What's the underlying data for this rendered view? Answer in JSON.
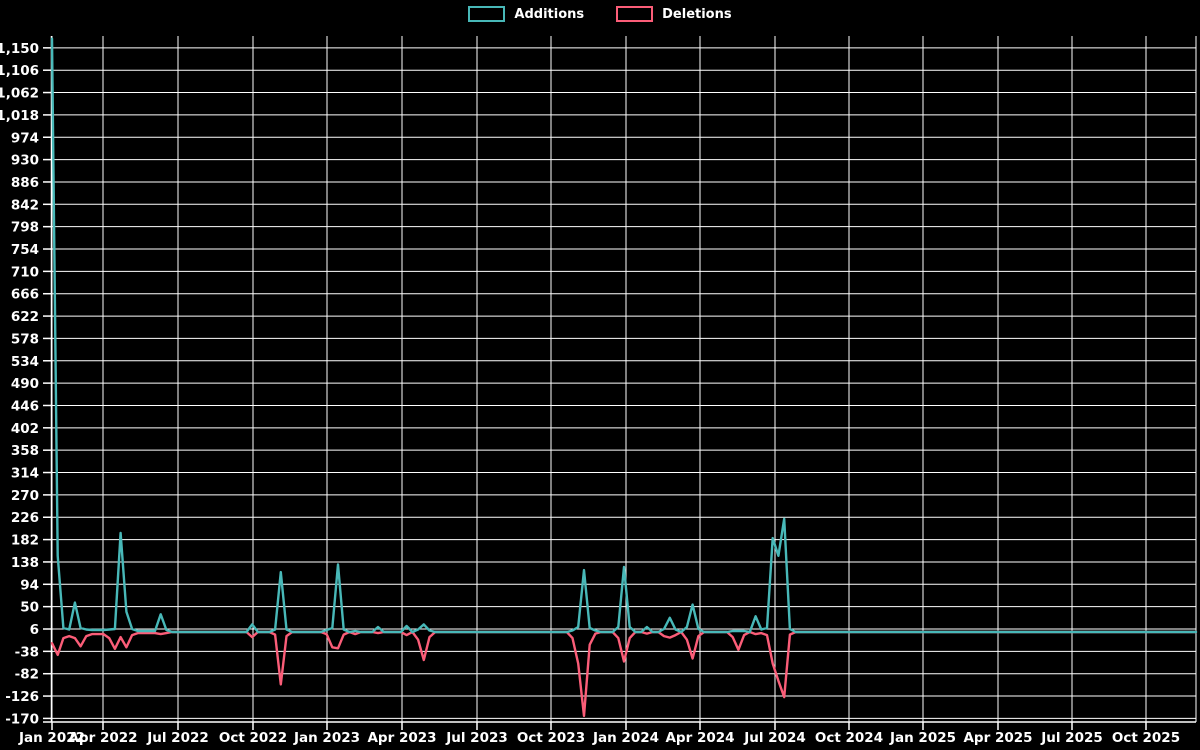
{
  "page": {
    "background": "#000000",
    "grid_color": "#ffffff",
    "text_color": "#ffffff"
  },
  "legend": {
    "items": [
      {
        "label": "Additions",
        "color": "#48b8b8"
      },
      {
        "label": "Deletions",
        "color": "#fb5d78"
      }
    ]
  },
  "chart_data": {
    "type": "line",
    "title": "",
    "xlabel": "",
    "ylabel": "",
    "legend_position": "top-center",
    "grid": true,
    "x_axis": {
      "unit": "week",
      "tick_labels": [
        "Jan 2022",
        "Apr 2022",
        "Jul 2022",
        "Oct 2022",
        "Jan 2023",
        "Apr 2023",
        "Jul 2023",
        "Oct 2023",
        "Jan 2024",
        "Apr 2024",
        "Jul 2024",
        "Oct 2024",
        "Jan 2025",
        "Apr 2025",
        "Jul 2025",
        "Oct 2025"
      ]
    },
    "y_axis": {
      "tick_values": [
        -170,
        -126,
        -82,
        -38,
        6,
        50,
        94,
        138,
        182,
        226,
        270,
        314,
        358,
        402,
        446,
        490,
        534,
        578,
        622,
        666,
        710,
        754,
        798,
        842,
        886,
        930,
        974,
        1018,
        1062,
        1106,
        1150
      ],
      "tick_labels": [
        "-170",
        "-126",
        "-82",
        "-38",
        "6",
        "50",
        "94",
        "138",
        "182",
        "226",
        "270",
        "314",
        "358",
        "402",
        "446",
        "490",
        "534",
        "578",
        "622",
        "666",
        "710",
        "754",
        "798",
        "842",
        "886",
        "930",
        "974",
        "1,018",
        "1,062",
        "1,106",
        "1,150"
      ],
      "drawn_range": [
        -170,
        1173
      ]
    },
    "weeks_total": 201,
    "series": [
      {
        "name": "Additions",
        "color": "#48b8b8",
        "default_value": 0,
        "points_sparse": {
          "0": 1168,
          "1": 150,
          "2": 8,
          "3": 5,
          "4": 58,
          "5": 8,
          "6": 5,
          "7": 4,
          "8": 4,
          "9": 4,
          "10": 5,
          "11": 6,
          "12": 195,
          "13": 40,
          "14": 6,
          "15": 2,
          "16": 2,
          "17": 2,
          "18": 2,
          "19": 35,
          "20": 4,
          "35": 15,
          "39": 5,
          "40": 118,
          "41": 5,
          "48": 4,
          "49": 8,
          "50": 133,
          "51": 5,
          "53": 2,
          "57": 10,
          "62": 12,
          "64": 5,
          "65": 15,
          "66": 3,
          "91": 3,
          "92": 10,
          "93": 122,
          "94": 8,
          "95": 3,
          "99": 10,
          "100": 128,
          "101": 10,
          "104": 10,
          "107": 6,
          "108": 28,
          "109": 5,
          "111": 10,
          "112": 54,
          "113": 6,
          "119": 2,
          "120": 2,
          "121": 2,
          "123": 31,
          "124": 5,
          "125": 8,
          "126": 185,
          "127": 150,
          "128": 223,
          "129": 6
        }
      },
      {
        "name": "Deletions",
        "color": "#fb5d78",
        "default_value": 0,
        "points_sparse": {
          "0": -22,
          "1": -45,
          "2": -12,
          "3": -8,
          "4": -12,
          "5": -28,
          "6": -8,
          "7": -4,
          "8": -4,
          "9": -4,
          "10": -12,
          "11": -33,
          "12": -10,
          "13": -30,
          "14": -6,
          "15": -2,
          "16": -2,
          "17": -2,
          "18": -2,
          "19": -4,
          "20": -2,
          "35": -10,
          "39": -5,
          "40": -103,
          "41": -8,
          "48": -4,
          "49": -30,
          "50": -32,
          "51": -5,
          "53": -4,
          "57": -2,
          "62": -6,
          "64": -15,
          "65": -55,
          "66": -10,
          "91": -12,
          "92": -62,
          "93": -165,
          "94": -25,
          "95": -3,
          "99": -12,
          "100": -58,
          "101": -12,
          "104": -3,
          "107": -8,
          "108": -11,
          "109": -6,
          "111": -15,
          "112": -52,
          "113": -8,
          "119": -10,
          "120": -35,
          "121": -6,
          "123": -4,
          "124": -2,
          "125": -6,
          "126": -62,
          "127": -96,
          "128": -128,
          "129": -5
        }
      }
    ]
  }
}
